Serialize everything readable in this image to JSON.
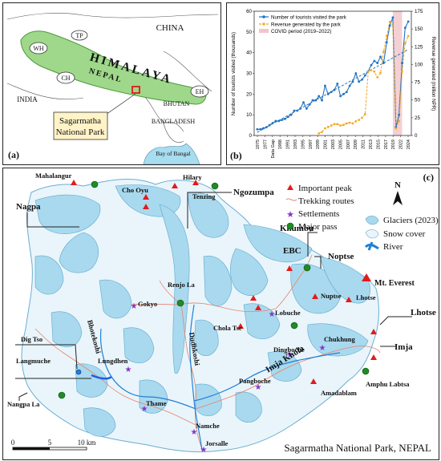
{
  "panel_a": {
    "label": "(a)",
    "country_labels": [
      "TP",
      "CHINA",
      "HIMALAYA",
      "NEPAL",
      "WH",
      "CH",
      "EH",
      "INDIA",
      "BHUTAN",
      "BANGLADESH",
      "Bay of Bangal"
    ],
    "park_callout": [
      "Sagarmatha",
      "National Park"
    ],
    "colors": {
      "nepal_fill": "#9fd88a",
      "water": "#a8dcef",
      "park_box": "#e0191b",
      "callout_bg": "#fff3c7"
    }
  },
  "panel_b": {
    "label": "(b)",
    "left_axis_ticks": [
      "0",
      "10",
      "20",
      "30",
      "40",
      "50",
      "60"
    ],
    "right_axis_ticks": [
      "0",
      "25",
      "50",
      "75",
      "100",
      "125",
      "150",
      "175"
    ],
    "ylabel_left": "Number of tourists visited (thousands)",
    "ylabel_right": "Revenue generated (million NPR)",
    "x_tick_labels": [
      "1975",
      "1977",
      "Data Gap",
      "1988",
      "1991",
      "1993",
      "1995",
      "1997",
      "1999",
      "2001",
      "2003",
      "2005",
      "2007",
      "2009",
      "2011",
      "2013",
      "2015",
      "2017",
      "2019",
      "2022",
      "2024"
    ],
    "legend": {
      "tourists": "Number of tourists visited the park",
      "revenue": "Revenue generated by the park",
      "covid": "COVID period (2019–2022)"
    },
    "chart_data": {
      "type": "line",
      "x_labels": [
        "1975",
        "1977",
        "Data Gap",
        "1988",
        "1991",
        "1993",
        "1995",
        "1997",
        "1999",
        "2001",
        "2003",
        "2005",
        "2007",
        "2009",
        "2011",
        "2013",
        "2015",
        "2017",
        "2019",
        "2022",
        "2024"
      ],
      "series": [
        {
          "name": "Number of tourists visited the park",
          "axis": "left",
          "x": [
            1975,
            1976,
            1977,
            1978,
            1979,
            1980,
            1981,
            1982,
            1983,
            1984,
            1985,
            1986,
            1987,
            1988,
            1989,
            1990,
            1991,
            1992,
            1993,
            1994,
            1995,
            1996,
            1997,
            1998,
            1999,
            2000,
            2001,
            2002,
            2003,
            2004,
            2005,
            2006,
            2007,
            2008,
            2009,
            2010,
            2011,
            2012,
            2013,
            2014,
            2015,
            2016,
            2017,
            2018,
            2019,
            2020,
            2021,
            2022,
            2023,
            2024
          ],
          "y": [
            3,
            3,
            3.5,
            4,
            5,
            6,
            7,
            7,
            7.5,
            8,
            9,
            10,
            12,
            12,
            13,
            16,
            13,
            15,
            17,
            17,
            19,
            17,
            24,
            20,
            21,
            22,
            25,
            19,
            20,
            21,
            24,
            26,
            30,
            26,
            27,
            29,
            31,
            34,
            36,
            35,
            38,
            35,
            45,
            53,
            57,
            4,
            10,
            35,
            52,
            55
          ]
        },
        {
          "name": "Revenue generated by the park",
          "axis": "right",
          "x": [
            1995,
            1996,
            1997,
            1998,
            1999,
            2000,
            2001,
            2002,
            2003,
            2004,
            2005,
            2006,
            2007,
            2008,
            2009,
            2010,
            2011,
            2012,
            2013,
            2014,
            2015,
            2016,
            2017,
            2018,
            2019,
            2020,
            2021,
            2022,
            2023,
            2024
          ],
          "y": [
            3,
            5,
            10,
            12,
            14,
            16,
            16,
            14,
            15,
            17,
            18,
            17,
            20,
            22,
            25,
            30,
            90,
            92,
            90,
            82,
            88,
            118,
            140,
            160,
            155,
            10,
            20,
            90,
            130,
            140
          ]
        }
      ],
      "trendline": true,
      "highlight_band": {
        "label": "COVID period (2019–2022)",
        "from": 2019,
        "to": 2022
      },
      "ylim_left": [
        0,
        60
      ],
      "ylim_right": [
        0,
        175
      ],
      "legend_position": "top-left",
      "colors": {
        "tourists": "#2173c2",
        "revenue": "#f5a41b",
        "covid": "#f3c4c8"
      }
    }
  },
  "panel_c": {
    "label": "(c)",
    "title": "Sagarmatha National Park, NEPAL",
    "north": "N",
    "scale_labels": [
      "0",
      "5",
      "10 km"
    ],
    "legend": {
      "peak": "Important peak",
      "trek": "Trekking routes",
      "settlement": "Settlements",
      "pass": "Major pass",
      "glacier": "Glaciers (2023)",
      "snow": "Snow cover",
      "river": "River"
    },
    "peaks": [
      "Mahalangur",
      "Cho Oyu",
      "Hilary",
      "Tenzing",
      "Mt. Everest",
      "Nuptse",
      "Lhotse",
      "Chola Tse",
      "Amadablam"
    ],
    "settlements": [
      "Gokyo",
      "Lobuche",
      "Dingboche",
      "Chukhung",
      "Pangboche",
      "Lungdhen",
      "Thame",
      "Namche",
      "Jorsalle"
    ],
    "passes": [
      "Renjo La",
      "Amphu Labtsa",
      "Nangpa La"
    ],
    "callouts": [
      "Nagpa",
      "Ngozumpa",
      "Khumbu",
      "EBC",
      "Noptse",
      "Lhotse",
      "Imja",
      "Dig Tso",
      "Langmuche"
    ],
    "rivers": [
      "Bhotekoshi",
      "Dudhkoshi",
      "Imja Khola"
    ],
    "colors": {
      "glacier": "#a9d9ee",
      "snow": "#e9f5fb",
      "river": "#1f7fd6",
      "trek": "#e8826a",
      "peak": "#e31a1c",
      "settlement": "#8a33c9",
      "pass": "#1e8c22"
    }
  }
}
